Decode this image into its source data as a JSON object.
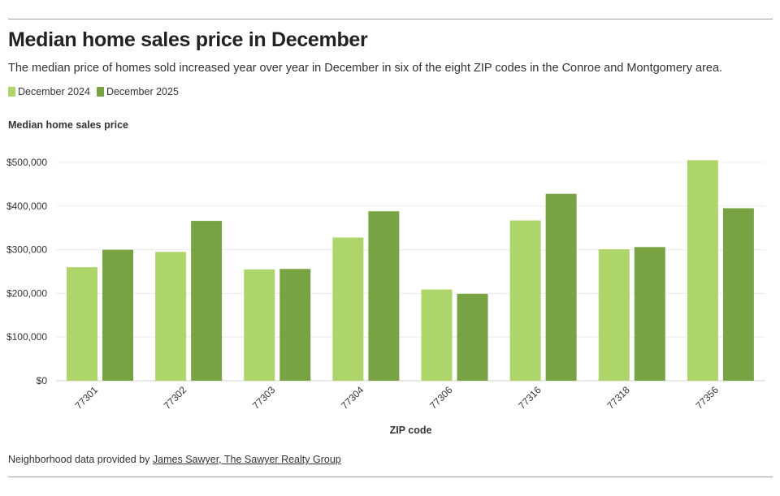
{
  "title": "Median home sales price in December",
  "subtitle": "The median price of homes sold increased year over year in December in six of the eight ZIP codes in the Conroe and Montgomery area.",
  "footer": {
    "prefix": "Neighborhood data provided by ",
    "link_text": "James Sawyer, The Sawyer Realty Group"
  },
  "colors": {
    "dec2024": "#aed56a",
    "dec2025": "#78a343",
    "grid": "#ececec",
    "text": "#333333"
  },
  "chart_data": {
    "type": "bar",
    "title": "Median home sales price in December",
    "xlabel": "ZIP code",
    "ylabel": "Median home sales price",
    "ylim": [
      0,
      500000
    ],
    "yticks": [
      0,
      100000,
      200000,
      300000,
      400000,
      500000
    ],
    "ytick_labels": [
      "$0",
      "$100,000",
      "$200,000",
      "$300,000",
      "$400,000",
      "$500,000"
    ],
    "grid": true,
    "legend_position": "top-left",
    "categories": [
      "77301",
      "77302",
      "77303",
      "77304",
      "77306",
      "77316",
      "77318",
      "77356"
    ],
    "series": [
      {
        "name": "December 2024",
        "color": "#aed56a",
        "values": [
          260000,
          295000,
          255000,
          328000,
          209000,
          367000,
          301000,
          505000
        ]
      },
      {
        "name": "December 2025",
        "color": "#78a343",
        "values": [
          300000,
          366000,
          256000,
          388000,
          199000,
          428000,
          306000,
          395000
        ]
      }
    ]
  }
}
